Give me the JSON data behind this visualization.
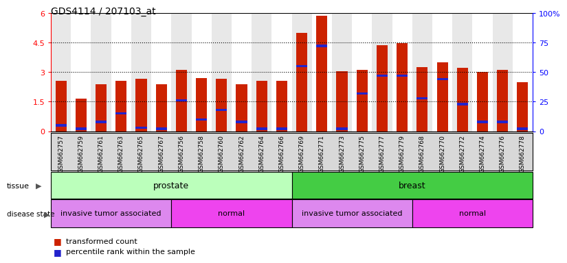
{
  "title": "GDS4114 / 207103_at",
  "samples": [
    "GSM662757",
    "GSM662759",
    "GSM662761",
    "GSM662763",
    "GSM662765",
    "GSM662767",
    "GSM662756",
    "GSM662758",
    "GSM662760",
    "GSM662762",
    "GSM662764",
    "GSM662766",
    "GSM662769",
    "GSM662771",
    "GSM662773",
    "GSM662775",
    "GSM662777",
    "GSM662779",
    "GSM662768",
    "GSM662770",
    "GSM662772",
    "GSM662774",
    "GSM662776",
    "GSM662778"
  ],
  "transformed_count": [
    2.55,
    1.65,
    2.4,
    2.55,
    2.65,
    2.4,
    3.1,
    2.7,
    2.65,
    2.4,
    2.55,
    2.55,
    5.0,
    5.85,
    3.05,
    3.1,
    4.35,
    4.45,
    3.25,
    3.5,
    3.2,
    3.0,
    3.1,
    2.5
  ],
  "percentile_rank_pct": [
    5,
    2,
    8,
    15,
    3,
    2,
    26,
    10,
    18,
    8,
    2,
    2,
    55,
    72,
    2,
    32,
    47,
    47,
    28,
    44,
    23,
    8,
    8,
    2
  ],
  "ylim_left": [
    0,
    6
  ],
  "ylim_right": [
    0,
    100
  ],
  "yticks_left": [
    0,
    1.5,
    3.0,
    4.5,
    6.0
  ],
  "ytick_labels_left": [
    "0",
    "1.5",
    "3",
    "4.5",
    "6"
  ],
  "yticks_right": [
    0,
    25,
    50,
    75,
    100
  ],
  "ytick_labels_right": [
    "0",
    "25",
    "50",
    "75",
    "100%"
  ],
  "bar_color": "#cc2200",
  "blue_color": "#2222cc",
  "col_bg_even": "#e8e8e8",
  "col_bg_odd": "#ffffff",
  "tissue_groups": [
    {
      "label": "prostate",
      "start": 0,
      "end": 12,
      "color": "#bbffbb"
    },
    {
      "label": "breast",
      "start": 12,
      "end": 24,
      "color": "#44cc44"
    }
  ],
  "disease_groups": [
    {
      "label": "invasive tumor associated",
      "start": 0,
      "end": 6,
      "color": "#dd88ee"
    },
    {
      "label": "normal",
      "start": 6,
      "end": 12,
      "color": "#ee44ee"
    },
    {
      "label": "invasive tumor associated",
      "start": 12,
      "end": 18,
      "color": "#dd88ee"
    },
    {
      "label": "normal",
      "start": 18,
      "end": 24,
      "color": "#ee44ee"
    }
  ],
  "legend_items": [
    {
      "label": "transformed count",
      "color": "#cc2200"
    },
    {
      "label": "percentile rank within the sample",
      "color": "#2222cc"
    }
  ],
  "bar_width": 0.55
}
